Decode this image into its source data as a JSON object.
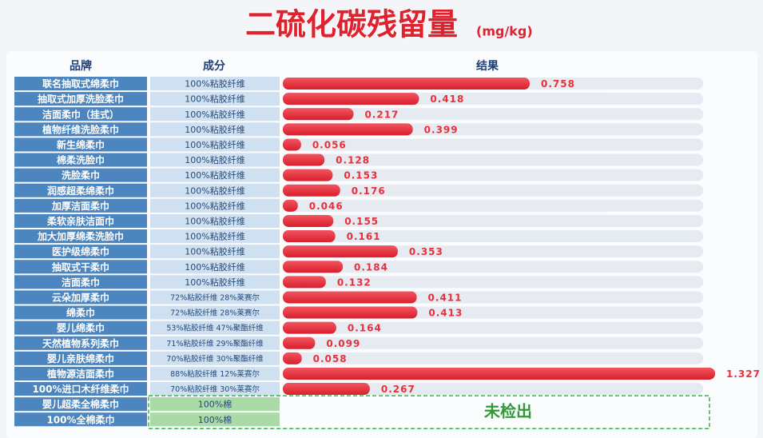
{
  "chart_data": {
    "type": "bar",
    "title": "二硫化碳残留量",
    "unit": "(mg/kg)",
    "column_headers": [
      "品牌",
      "成分",
      "结果"
    ],
    "categories": [
      "联名抽取式绵柔巾",
      "抽取式加厚洗脸柔巾",
      "洁面柔巾（挂式）",
      "植物纤维洗脸柔巾",
      "新生绵柔巾",
      "棉柔洗脸巾",
      "洗脸柔巾",
      "润感超柔绵柔巾",
      "加厚洁面柔巾",
      "柔软亲肤洁面巾",
      "加大加厚绵柔洗脸巾",
      "医护级绵柔巾",
      "抽取式干柔巾",
      "洁面柔巾",
      "云朵加厚柔巾",
      "绵柔巾",
      "婴儿绵柔巾",
      "天然植物系列柔巾",
      "婴儿亲肤绵柔巾",
      "植物源洁面柔巾",
      "100%进口木纤维柔巾",
      "婴儿超柔全棉柔巾",
      "100%全棉柔巾"
    ],
    "composition": [
      "100%粘胶纤维",
      "100%粘胶纤维",
      "100%粘胶纤维",
      "100%粘胶纤维",
      "100%粘胶纤维",
      "100%粘胶纤维",
      "100%粘胶纤维",
      "100%粘胶纤维",
      "100%粘胶纤维",
      "100%粘胶纤维",
      "100%粘胶纤维",
      "100%粘胶纤维",
      "100%粘胶纤维",
      "100%粘胶纤维",
      "72%粘胶纤维 28%莱赛尔",
      "72%粘胶纤维 28%莱赛尔",
      "53%粘胶纤维 47%聚酯纤维",
      "71%粘胶纤维 29%聚酯纤维",
      "70%粘胶纤维 30%聚酯纤维",
      "88%粘胶纤维 12%莱赛尔",
      "70%粘胶纤维 30%莱赛尔",
      "100%棉",
      "100%棉"
    ],
    "values": [
      0.758,
      0.418,
      0.217,
      0.399,
      0.056,
      0.128,
      0.153,
      0.176,
      0.046,
      0.155,
      0.161,
      0.353,
      0.184,
      0.132,
      0.411,
      0.413,
      0.164,
      0.099,
      0.058,
      1.327,
      0.267,
      null,
      null
    ],
    "color": "#e8303a",
    "not_detected_label": "未检出"
  }
}
